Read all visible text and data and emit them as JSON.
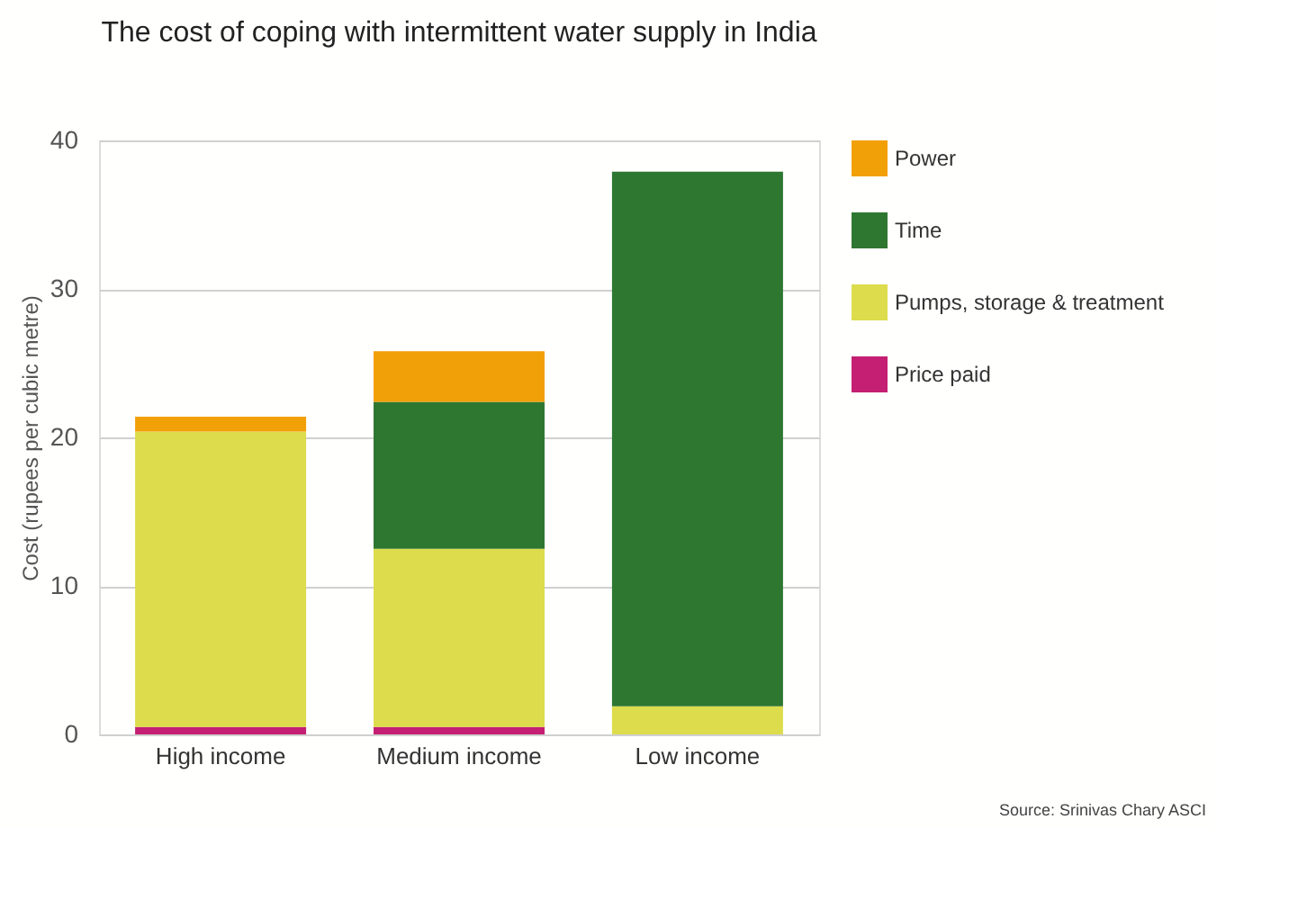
{
  "chart_data": {
    "type": "bar",
    "stacked": true,
    "title": "The cost of coping with intermittent water supply in India",
    "ylabel": "Cost (rupees per cubic metre)",
    "categories": [
      "High income",
      "Medium income",
      "Low income"
    ],
    "series": [
      {
        "name": "Price paid",
        "color": "#c41f72",
        "values": [
          0.5,
          0.5,
          null
        ]
      },
      {
        "name": "Pumps, storage & treatment",
        "color": "#dcdc4c",
        "values": [
          19.9,
          12.0,
          1.9
        ]
      },
      {
        "name": "Time",
        "color": "#2e7731",
        "values": [
          null,
          9.9,
          36.0
        ]
      },
      {
        "name": "Power",
        "color": "#f2a007",
        "values": [
          1.0,
          3.4,
          null
        ]
      }
    ],
    "ylim": [
      0,
      40
    ],
    "yticks": [
      0,
      10,
      20,
      30,
      40
    ],
    "grid": "y",
    "legend": "top right",
    "annotations": [
      "Source: Srinivas Chary ASCI"
    ]
  }
}
